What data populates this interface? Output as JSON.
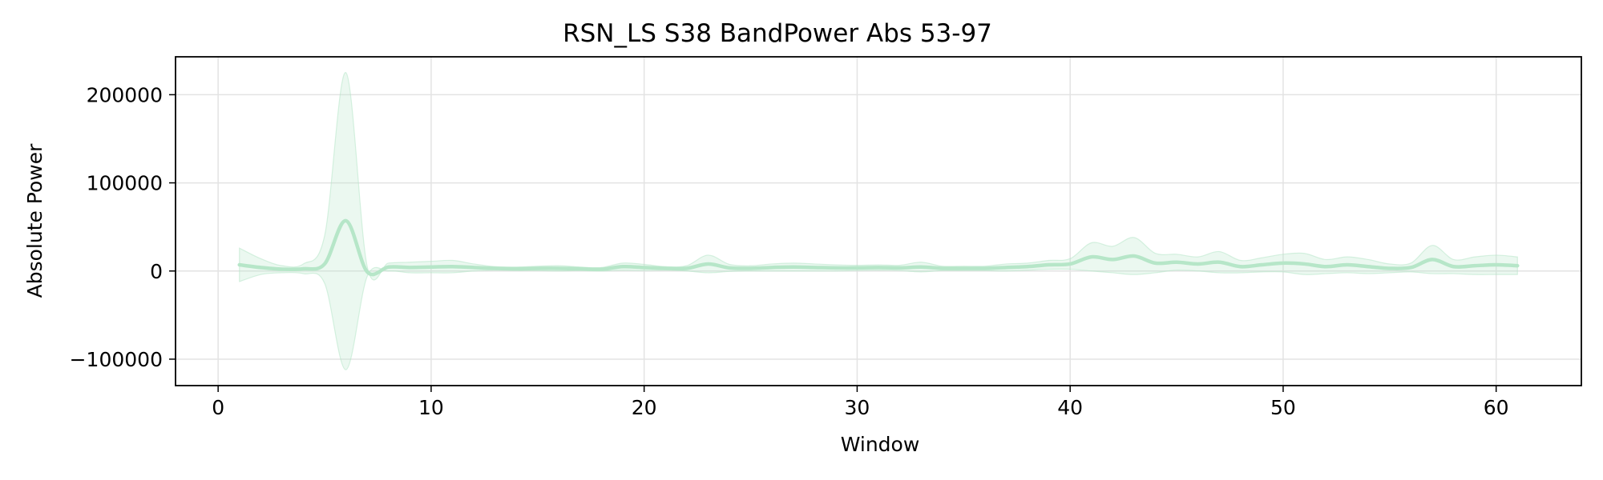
{
  "chart_data": {
    "type": "line",
    "title": "RSN_LS S38 BandPower Abs 53-97",
    "xlabel": "Window",
    "ylabel": "Absolute Power",
    "xlim": [
      -2,
      64
    ],
    "ylim": [
      -130000,
      243000
    ],
    "xticks": [
      0,
      10,
      20,
      30,
      40,
      50,
      60
    ],
    "yticks": [
      -100000,
      0,
      100000,
      200000
    ],
    "ytick_labels": [
      "−100000",
      "0",
      "100000",
      "200000"
    ],
    "grid": true,
    "legend": "none",
    "series": [
      {
        "color": "#b6e6c8",
        "band_color": "#b6e6c8",
        "x": [
          1,
          2,
          3,
          4,
          5,
          6,
          7,
          8,
          9,
          10,
          11,
          12,
          13,
          14,
          15,
          16,
          17,
          18,
          19,
          20,
          21,
          22,
          23,
          24,
          25,
          26,
          27,
          28,
          29,
          30,
          31,
          32,
          33,
          34,
          35,
          36,
          37,
          38,
          39,
          40,
          41,
          42,
          43,
          44,
          45,
          46,
          47,
          48,
          49,
          50,
          51,
          52,
          53,
          54,
          55,
          56,
          57,
          58,
          59,
          60,
          61
        ],
        "y": [
          7000,
          4000,
          2000,
          2500,
          8000,
          57000,
          -1000,
          4500,
          4000,
          4500,
          5000,
          4000,
          3000,
          2500,
          3000,
          3000,
          2500,
          2000,
          5000,
          4000,
          3000,
          3000,
          8000,
          3500,
          3000,
          4000,
          4500,
          4000,
          3500,
          3500,
          4000,
          3500,
          4500,
          3000,
          3000,
          3000,
          4000,
          5000,
          7000,
          8000,
          16000,
          13000,
          17000,
          9000,
          10000,
          8000,
          10000,
          5000,
          7000,
          9000,
          8000,
          5000,
          7000,
          5000,
          3000,
          4000,
          13000,
          5000,
          6000,
          7000,
          6000
        ],
        "upper": [
          26000,
          14000,
          6000,
          8000,
          40000,
          225000,
          5000,
          9000,
          10000,
          11000,
          12000,
          8000,
          5000,
          4500,
          5500,
          6000,
          4500,
          4000,
          9000,
          7500,
          5000,
          6000,
          18000,
          7500,
          6000,
          8000,
          9000,
          8000,
          7000,
          6500,
          7000,
          6500,
          10000,
          5500,
          5500,
          5500,
          8000,
          9000,
          12000,
          14000,
          32000,
          28000,
          38000,
          20000,
          19000,
          16000,
          22000,
          12000,
          15000,
          19000,
          20000,
          13000,
          16000,
          13000,
          8000,
          9000,
          29000,
          13000,
          16000,
          18000,
          16000
        ],
        "lower": [
          -12000,
          -4000,
          -2000,
          -3000,
          -14000,
          -112000,
          -6000,
          0,
          -2000,
          -2000,
          -2000,
          0,
          1000,
          500,
          500,
          0,
          500,
          0,
          1000,
          500,
          1000,
          0,
          -2000,
          -500,
          0,
          0,
          0,
          0,
          0,
          500,
          1000,
          500,
          -1000,
          500,
          500,
          500,
          0,
          1000,
          2000,
          2000,
          0,
          -2000,
          -4000,
          -2000,
          1000,
          0,
          -2000,
          -2000,
          -1000,
          -1000,
          -4000,
          -3000,
          -2000,
          -3000,
          -2000,
          -1000,
          -3000,
          -3000,
          -4000,
          -4000,
          -4000
        ]
      }
    ]
  }
}
